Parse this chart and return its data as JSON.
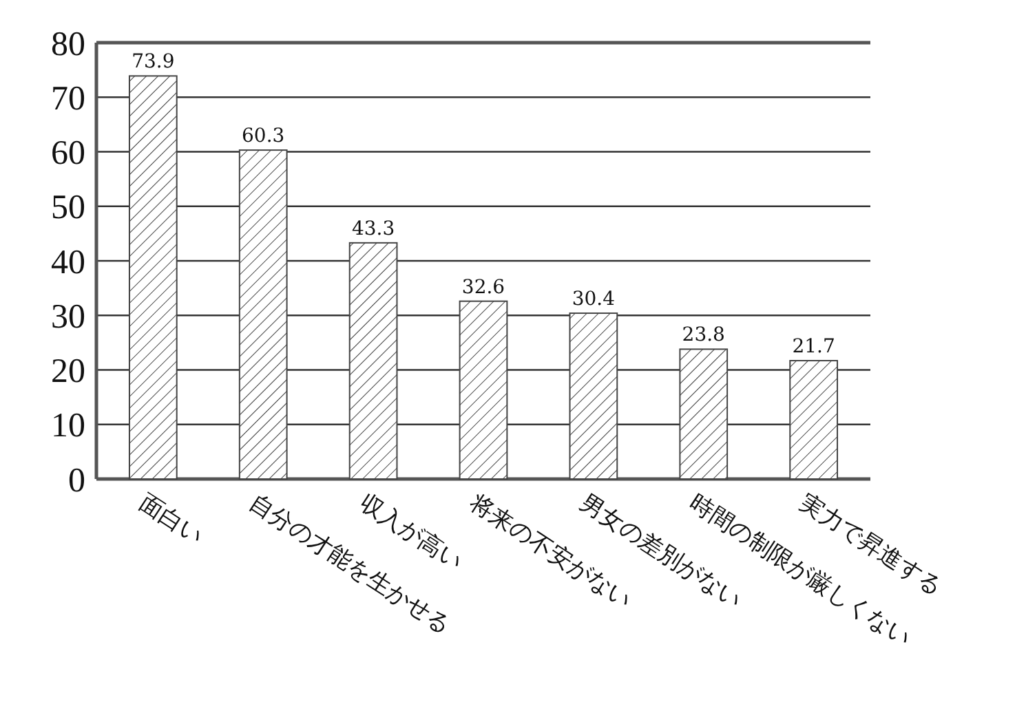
{
  "chart_data": {
    "type": "bar",
    "categories": [
      "面白い",
      "自分の才能を生かせる",
      "収入が高い",
      "将来の不安がない",
      "男女の差別がない",
      "時間の制限が厳しくない",
      "実力で昇進する"
    ],
    "values": [
      73.9,
      60.3,
      43.3,
      32.6,
      30.4,
      23.8,
      21.7
    ],
    "color": "#444444",
    "ylim": [
      0,
      80
    ],
    "yticks": [
      0,
      10,
      20,
      30,
      40,
      50,
      60,
      70,
      80
    ],
    "grid": "y",
    "data_labels": true
  }
}
